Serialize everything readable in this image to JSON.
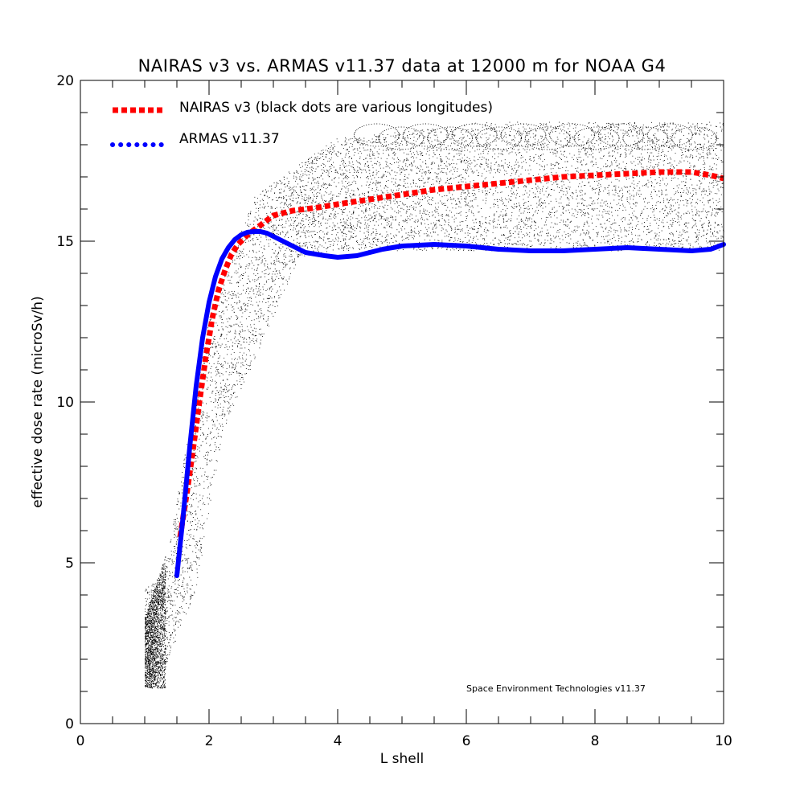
{
  "chart_data": {
    "type": "line",
    "title": "NAIRAS  v3 vs. ARMAS v11.37 data at 12000 m for NOAA G4",
    "xlabel": "L shell",
    "ylabel": "effective dose rate (microSv/h)",
    "xlim": [
      0,
      10
    ],
    "ylim": [
      0,
      20
    ],
    "xticks": [
      0,
      2,
      4,
      6,
      8,
      10
    ],
    "yticks": [
      0,
      5,
      10,
      15,
      20
    ],
    "grid": false,
    "legend_position": "top-left",
    "credit": "Space Environment Technologies v11.37",
    "series": [
      {
        "name": "NAIRAS v3 (black dots are various longitudes)",
        "color": "#ff0000",
        "style": "dotted-thick",
        "x": [
          1.55,
          1.65,
          1.75,
          1.85,
          1.95,
          2.05,
          2.15,
          2.25,
          2.35,
          2.45,
          2.6,
          2.8,
          3.0,
          3.3,
          3.7,
          4.0,
          4.5,
          5.0,
          5.5,
          6.0,
          6.5,
          7.0,
          7.5,
          8.0,
          8.5,
          9.0,
          9.5,
          9.8,
          10.0
        ],
        "y": [
          5.8,
          7.1,
          8.5,
          10.0,
          11.4,
          12.6,
          13.5,
          14.1,
          14.6,
          14.9,
          15.2,
          15.5,
          15.8,
          15.95,
          16.05,
          16.15,
          16.3,
          16.45,
          16.6,
          16.7,
          16.8,
          16.9,
          17.0,
          17.05,
          17.1,
          17.15,
          17.15,
          17.05,
          16.95
        ]
      },
      {
        "name": "ARMAS v11.37",
        "color": "#0000ff",
        "style": "solid-thick",
        "x": [
          1.5,
          1.6,
          1.7,
          1.8,
          1.9,
          2.0,
          2.1,
          2.2,
          2.3,
          2.4,
          2.5,
          2.6,
          2.7,
          2.8,
          2.9,
          3.0,
          3.2,
          3.5,
          3.8,
          4.0,
          4.3,
          4.7,
          5.0,
          5.5,
          6.0,
          6.5,
          7.0,
          7.5,
          8.0,
          8.5,
          9.0,
          9.5,
          9.8,
          10.0
        ],
        "y": [
          4.6,
          6.5,
          8.6,
          10.5,
          12.0,
          13.1,
          13.9,
          14.45,
          14.8,
          15.05,
          15.2,
          15.28,
          15.3,
          15.3,
          15.25,
          15.15,
          14.95,
          14.65,
          14.55,
          14.5,
          14.55,
          14.75,
          14.85,
          14.9,
          14.85,
          14.75,
          14.7,
          14.7,
          14.75,
          14.8,
          14.75,
          14.7,
          14.75,
          14.9
        ]
      }
    ],
    "scatter_cloud": {
      "color": "#000000",
      "description_series": "NAIRAS longitudes"
    }
  }
}
